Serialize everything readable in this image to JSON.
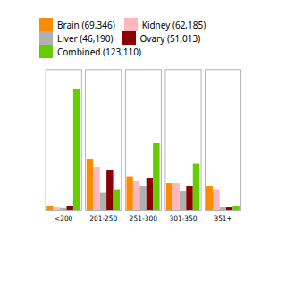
{
  "chart_data": {
    "type": "bar",
    "categories": [
      "<200",
      "201-250",
      "251-300",
      "301-350",
      "351+"
    ],
    "series": [
      {
        "name": "Brain (69,346)",
        "color": "#FF8C00",
        "values": [
          0.3,
          3.8,
          2.5,
          2.0,
          1.8
        ]
      },
      {
        "name": "Kidney (62,185)",
        "color": "#FFB6C1",
        "values": [
          0.2,
          3.2,
          2.2,
          2.0,
          1.5
        ]
      },
      {
        "name": "Liver (46,190)",
        "color": "#B0B0B0",
        "values": [
          0.15,
          1.3,
          1.8,
          1.4,
          0.2
        ]
      },
      {
        "name": "Ovary (51,013)",
        "color": "#8B0000",
        "values": [
          0.3,
          3.0,
          2.4,
          1.8,
          0.2
        ]
      },
      {
        "name": "Combined (123,110)",
        "color": "#66CC00",
        "values": [
          9.0,
          1.5,
          5.0,
          3.5,
          0.3
        ]
      }
    ],
    "ylim": [
      0,
      10.5
    ],
    "tick_labels": "x",
    "grid": false,
    "legend": "upper right"
  }
}
